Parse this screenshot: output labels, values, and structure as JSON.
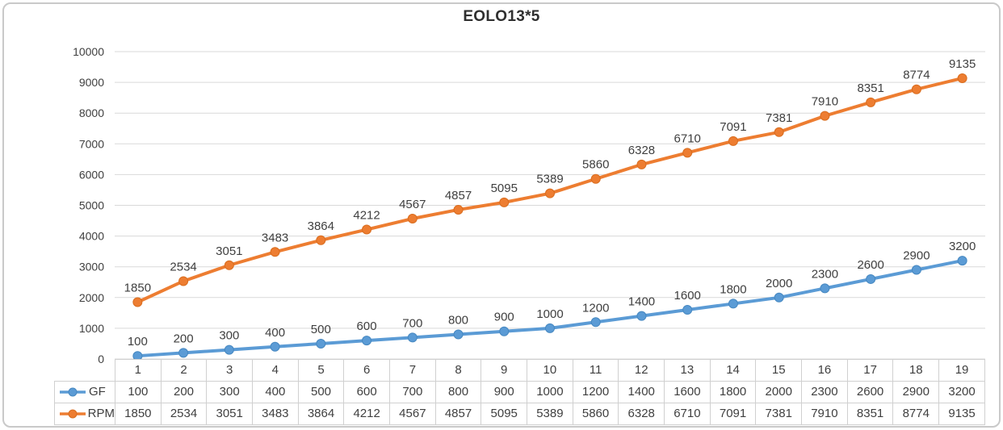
{
  "chart_data": {
    "type": "line",
    "title": "EOLO13*5",
    "categories": [
      "1",
      "2",
      "3",
      "4",
      "5",
      "6",
      "7",
      "8",
      "9",
      "10",
      "11",
      "12",
      "13",
      "14",
      "15",
      "16",
      "17",
      "18",
      "19"
    ],
    "series": [
      {
        "name": "GF",
        "color": "#5B9BD5",
        "marker_border": "#4688c1",
        "values": [
          100,
          200,
          300,
          400,
          500,
          600,
          700,
          800,
          900,
          1000,
          1200,
          1400,
          1600,
          1800,
          2000,
          2300,
          2600,
          2900,
          3200
        ]
      },
      {
        "name": "RPM",
        "color": "#ED7D31",
        "marker_border": "#d96d1f",
        "values": [
          1850,
          2534,
          3051,
          3483,
          3864,
          4212,
          4567,
          4857,
          5095,
          5389,
          5860,
          6328,
          6710,
          7091,
          7381,
          7910,
          8351,
          8774,
          9135
        ]
      }
    ],
    "ylim": [
      0,
      10000
    ],
    "ytick_step": 1000,
    "grid": true,
    "data_labels": true,
    "legend_position": "table-left",
    "text_color": "#3f3f3f",
    "grid_color": "#d9d9d9",
    "table_border_color": "#d0d0d0"
  }
}
